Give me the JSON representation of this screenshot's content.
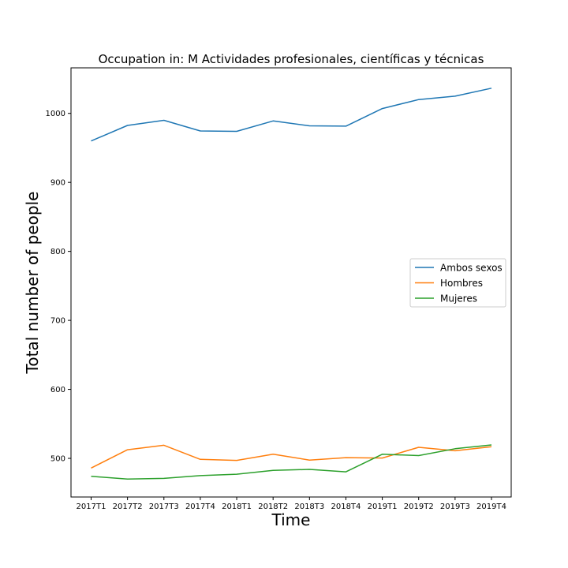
{
  "chart_data": {
    "type": "line",
    "title": "Occupation in: M Actividades profesionales, científicas y técnicas",
    "xlabel": "Time",
    "ylabel": "Total number of people",
    "categories": [
      "2017T1",
      "2017T2",
      "2017T3",
      "2017T4",
      "2018T1",
      "2018T2",
      "2018T3",
      "2018T4",
      "2019T1",
      "2019T2",
      "2019T3",
      "2019T4"
    ],
    "yticks": [
      500,
      600,
      700,
      800,
      900,
      1000
    ],
    "ylim": [
      444,
      1066
    ],
    "grid": false,
    "legend_position": "center-right",
    "series": [
      {
        "name": "Ambos sexos",
        "color": "#1f77b4",
        "values": [
          960,
          982.5,
          990,
          974.5,
          974,
          989,
          982,
          981.5,
          1007,
          1020,
          1025,
          1036.5
        ]
      },
      {
        "name": "Hombres",
        "color": "#ff7f0e",
        "values": [
          486,
          512.5,
          519,
          498.5,
          497,
          506,
          497.5,
          501,
          500.5,
          516,
          511,
          517
        ]
      },
      {
        "name": "Mujeres",
        "color": "#2ca02c",
        "values": [
          474,
          470,
          471,
          475,
          477,
          482.5,
          484,
          480.5,
          506,
          504,
          514,
          519.5
        ]
      }
    ]
  }
}
